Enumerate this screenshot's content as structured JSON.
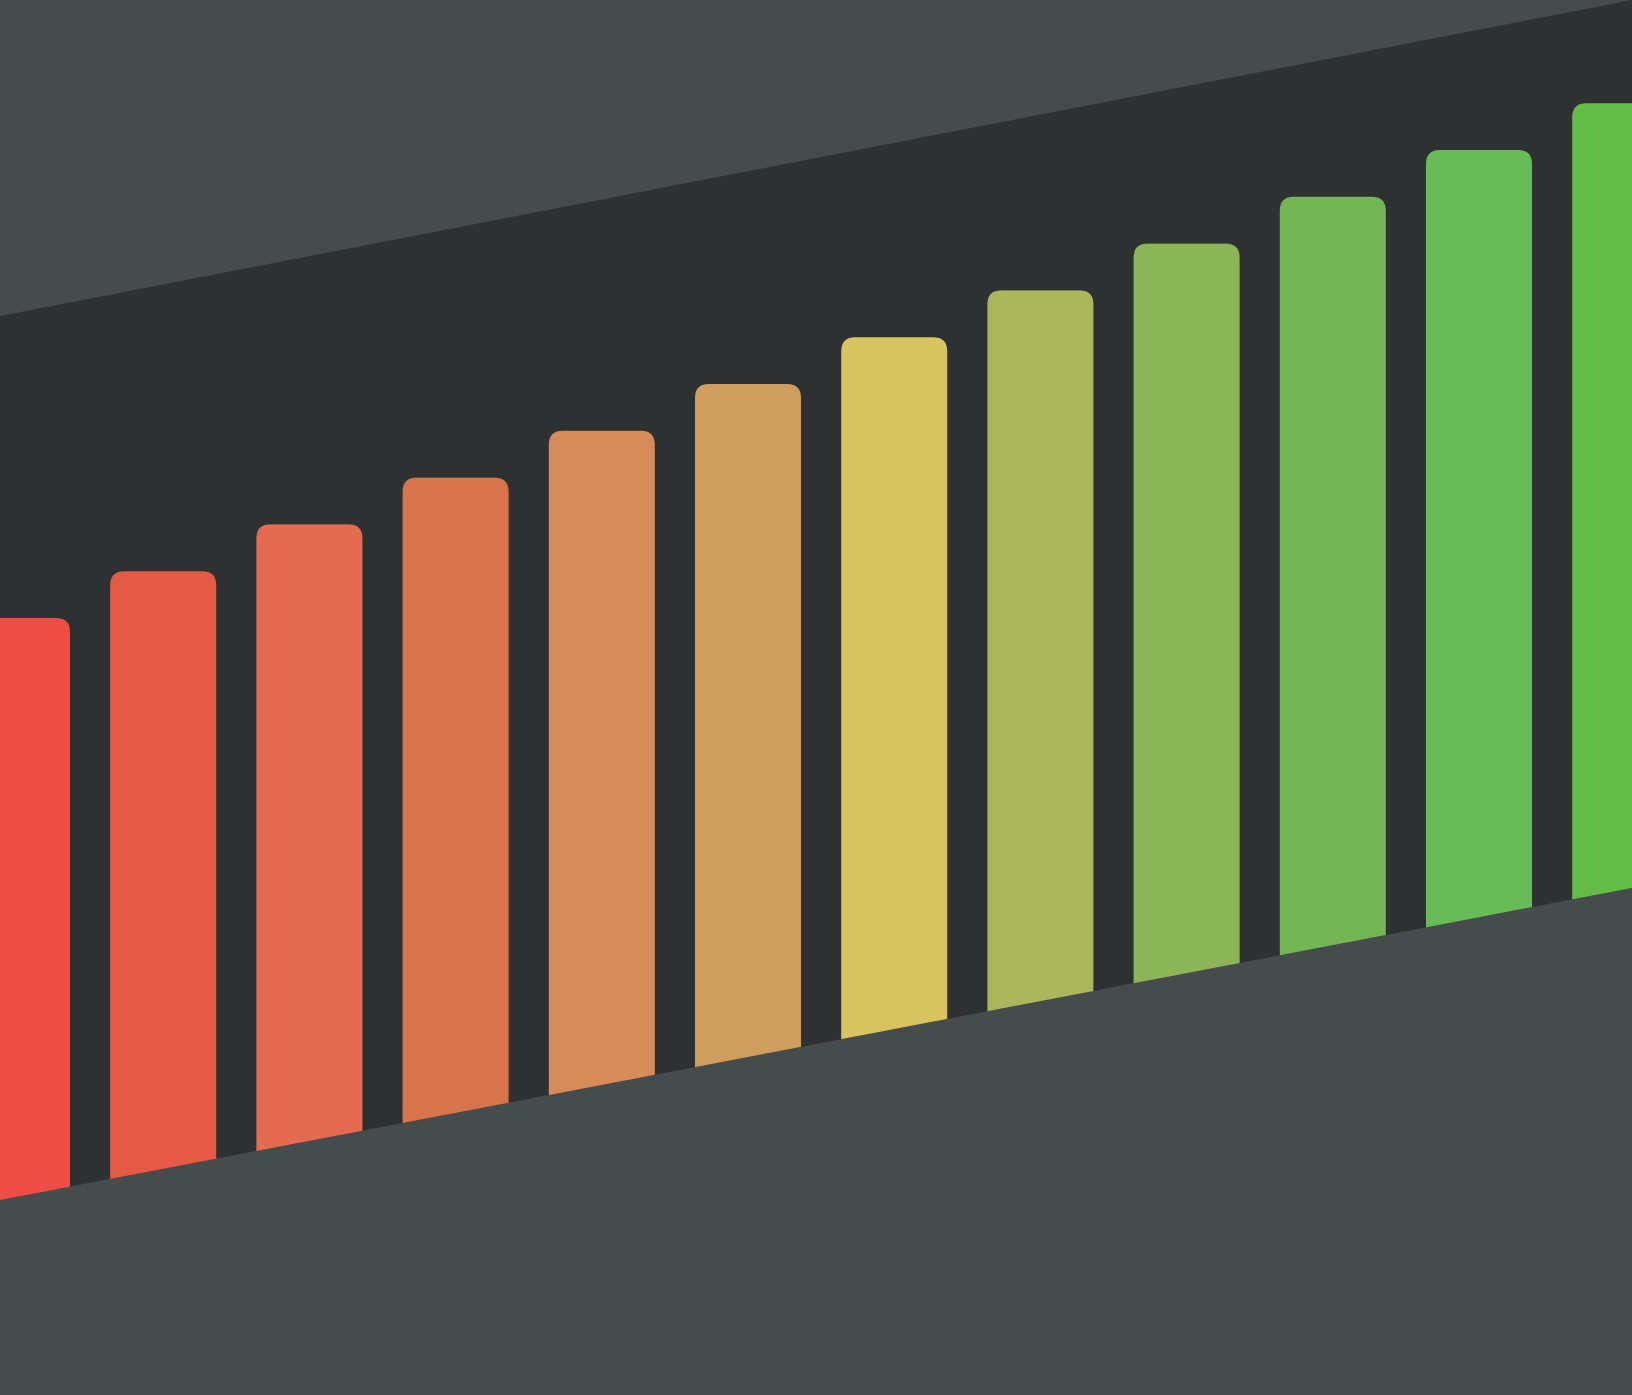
{
  "colors": {
    "background": "#464c4c",
    "band": "#2e3132",
    "bars": [
      "#ef4d45",
      "#e45a45",
      "#e56a52",
      "#d7744c",
      "#d78b58",
      "#cf9e5f",
      "#d7c461",
      "#abb65d",
      "#8cb558",
      "#74b655",
      "#67bc58",
      "#62bc46"
    ]
  },
  "bars": {
    "count": 12,
    "trend": "ascending",
    "levels": [
      0.0,
      0.09,
      0.18,
      0.27,
      0.36,
      0.45,
      0.55,
      0.64,
      0.73,
      0.82,
      0.91,
      1.0
    ]
  }
}
